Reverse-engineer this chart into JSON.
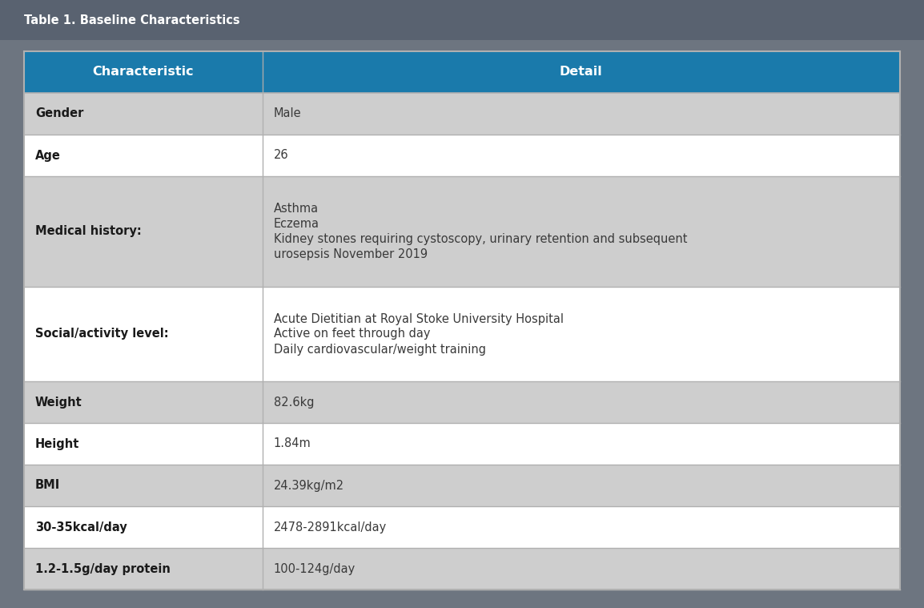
{
  "title": "Table 1. Baseline Characteristics",
  "col_header": [
    "Characteristic",
    "Detail"
  ],
  "col_split": 0.272,
  "header_bg": "#1a7aab",
  "header_text_color": "#ffffff",
  "title_text_color": "#ffffff",
  "title_bg": "#596270",
  "outer_bg": "#6d7580",
  "row_bg_odd": "#cecece",
  "row_bg_even": "#ffffff",
  "divider_color": "#b0b0b0",
  "rows": [
    {
      "char": "Gender",
      "detail_lines": [
        "Male"
      ],
      "char_bold": true
    },
    {
      "char": "Age",
      "detail_lines": [
        "26"
      ],
      "char_bold": true
    },
    {
      "char": "Medical history:",
      "detail_lines": [
        "Asthma",
        "Eczema",
        "Kidney stones requiring cystoscopy, urinary retention and subsequent",
        "urosepsis November 2019"
      ],
      "char_bold": true
    },
    {
      "char": "Social/activity level:",
      "detail_lines": [
        "Acute Dietitian at Royal Stoke University Hospital",
        "Active on feet through day",
        "Daily cardiovascular/weight training"
      ],
      "char_bold": true
    },
    {
      "char": "Weight",
      "detail_lines": [
        "82.6kg"
      ],
      "char_bold": true
    },
    {
      "char": "Height",
      "detail_lines": [
        "1.84m"
      ],
      "char_bold": true
    },
    {
      "char": "BMI",
      "detail_lines": [
        "24.39kg/m2"
      ],
      "char_bold": true
    },
    {
      "char": "30-35kcal/day",
      "detail_lines": [
        "2478-2891kcal/day"
      ],
      "char_bold": true
    },
    {
      "char": "1.2-1.5g/day protein",
      "detail_lines": [
        "100-124g/day"
      ],
      "char_bold": true
    }
  ],
  "font_size_title": 10.5,
  "font_size_header": 11.5,
  "font_size_body": 10.5,
  "fig_width": 11.54,
  "fig_height": 7.59,
  "dpi": 100
}
